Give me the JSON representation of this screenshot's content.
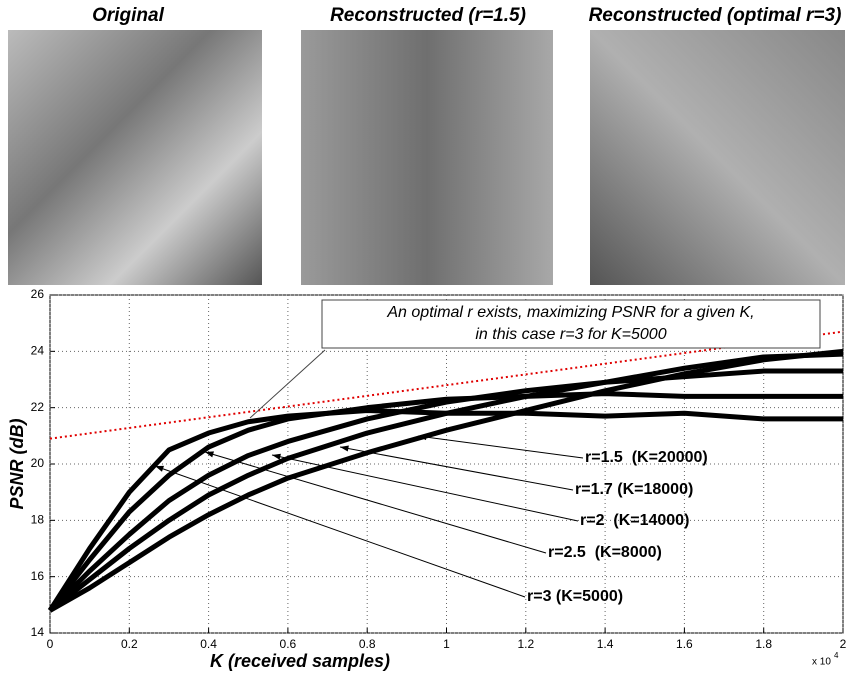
{
  "chart_data": {
    "type": "line",
    "panel_titles": [
      "Original",
      "Reconstructed (r=1.5)",
      "Reconstructed (optimal r=3)"
    ],
    "xlabel": "K  (received samples)",
    "ylabel": "PSNR (dB)",
    "x_offset_text": {
      "base": "x 10",
      "power": "4"
    },
    "annotation": [
      "An optimal r exists, maximizing PSNR for a given K,",
      "in this case r=3 for K=5000"
    ],
    "x": [
      0,
      1000,
      2000,
      3000,
      4000,
      5000,
      6000,
      8000,
      10000,
      12000,
      14000,
      16000,
      18000,
      20000
    ],
    "series": [
      {
        "name": "r=1.5  (K=20000)",
        "color": "#000000",
        "values": [
          14.8,
          15.6,
          16.5,
          17.4,
          18.2,
          18.9,
          19.5,
          20.4,
          21.2,
          21.9,
          22.6,
          23.2,
          23.7,
          24.0
        ]
      },
      {
        "name": "r=1.7 (K=18000)",
        "color": "#000000",
        "values": [
          14.8,
          15.9,
          17.0,
          18.0,
          18.9,
          19.6,
          20.2,
          21.1,
          21.8,
          22.4,
          22.9,
          23.4,
          23.8,
          23.9
        ]
      },
      {
        "name": "r=2  (K=14000)",
        "color": "#000000",
        "values": [
          14.8,
          16.2,
          17.5,
          18.7,
          19.6,
          20.3,
          20.8,
          21.6,
          22.2,
          22.6,
          22.9,
          23.1,
          23.3,
          23.3
        ]
      },
      {
        "name": "r=2.5  (K=8000)",
        "color": "#000000",
        "values": [
          14.8,
          16.6,
          18.3,
          19.6,
          20.6,
          21.2,
          21.6,
          22.0,
          22.3,
          22.4,
          22.5,
          22.4,
          22.4,
          22.4
        ]
      },
      {
        "name": "r=3 (K=5000)",
        "color": "#000000",
        "values": [
          14.8,
          17.0,
          19.0,
          20.5,
          21.1,
          21.5,
          21.7,
          21.9,
          21.8,
          21.8,
          21.7,
          21.8,
          21.6,
          21.6
        ]
      }
    ],
    "bound": {
      "color": "#e00000",
      "x": [
        0,
        20000
      ],
      "values": [
        20.9,
        24.7
      ]
    },
    "xlim": [
      0,
      20000
    ],
    "xticks": [
      {
        "value": 0,
        "label": "0"
      },
      {
        "value": 2000,
        "label": "0.2"
      },
      {
        "value": 4000,
        "label": "0.4"
      },
      {
        "value": 6000,
        "label": "0.6"
      },
      {
        "value": 8000,
        "label": "0.8"
      },
      {
        "value": 10000,
        "label": "1"
      },
      {
        "value": 12000,
        "label": "1.2"
      },
      {
        "value": 14000,
        "label": "1.4"
      },
      {
        "value": 16000,
        "label": "1.6"
      },
      {
        "value": 18000,
        "label": "1.8"
      },
      {
        "value": 20000,
        "label": "2"
      }
    ],
    "ylim": [
      14,
      26
    ],
    "yticks": [
      14,
      16,
      18,
      20,
      22,
      24,
      26
    ],
    "grid": true
  }
}
